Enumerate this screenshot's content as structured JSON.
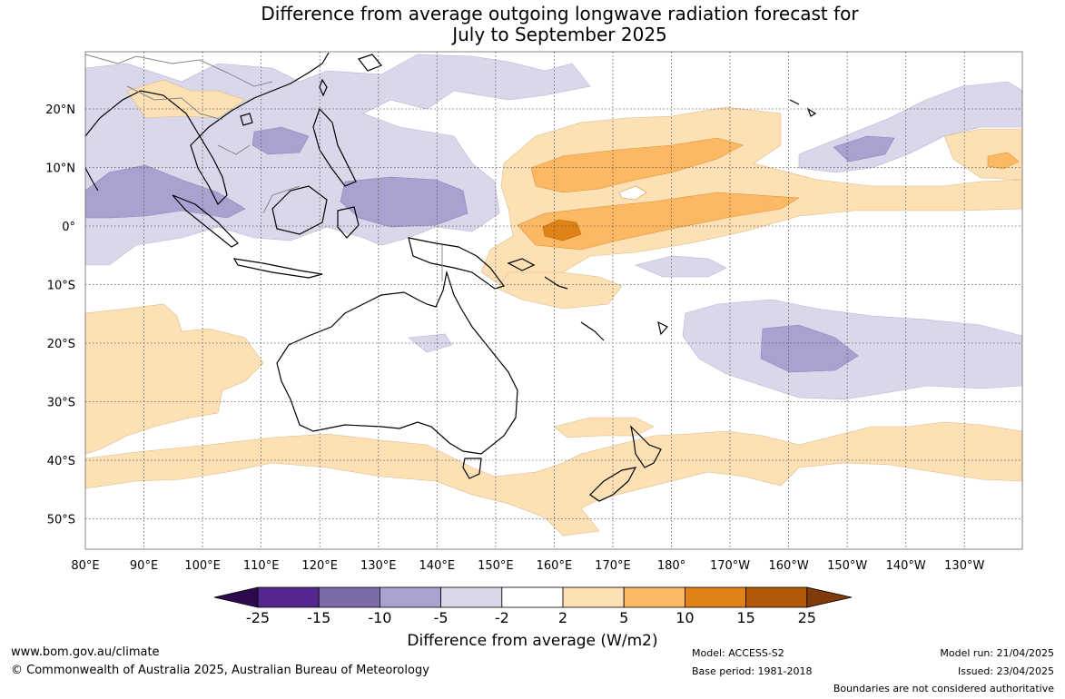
{
  "title": {
    "line1": "Difference from average outgoing longwave radiation forecast for",
    "line2": "July to September 2025"
  },
  "map": {
    "lon_labels": [
      "80°E",
      "90°E",
      "100°E",
      "110°E",
      "120°E",
      "130°E",
      "140°E",
      "150°E",
      "160°E",
      "170°E",
      "180°",
      "170°W",
      "160°W",
      "150°W",
      "140°W",
      "130°W"
    ],
    "lat_labels": [
      "20°N",
      "10°N",
      "0°",
      "10°S",
      "20°S",
      "30°S",
      "40°S",
      "50°S"
    ]
  },
  "colorbar": {
    "ticks": [
      "-25",
      "-15",
      "-10",
      "-5",
      "-2",
      "2",
      "5",
      "10",
      "15",
      "25"
    ],
    "colors": [
      "#2d0a4e",
      "#54278f",
      "#7b6ba9",
      "#a9a1cf",
      "#d8d8ea",
      "#ffffff",
      "#fde0b4",
      "#fdb863",
      "#e08214",
      "#b35806",
      "#7f3b08"
    ],
    "label": "Difference from average (W/m2)"
  },
  "footer": {
    "url": "www.bom.gov.au/climate",
    "copyright": "© Commonwealth of Australia 2025, Australian Bureau of Meteorology",
    "model": "Model: ACCESS-S2",
    "base_period": "Base period: 1981-2018",
    "model_run": "Model run: 21/04/2025",
    "issued": "Issued: 23/04/2025",
    "disclaimer": "Boundaries are not considered authoritative"
  }
}
